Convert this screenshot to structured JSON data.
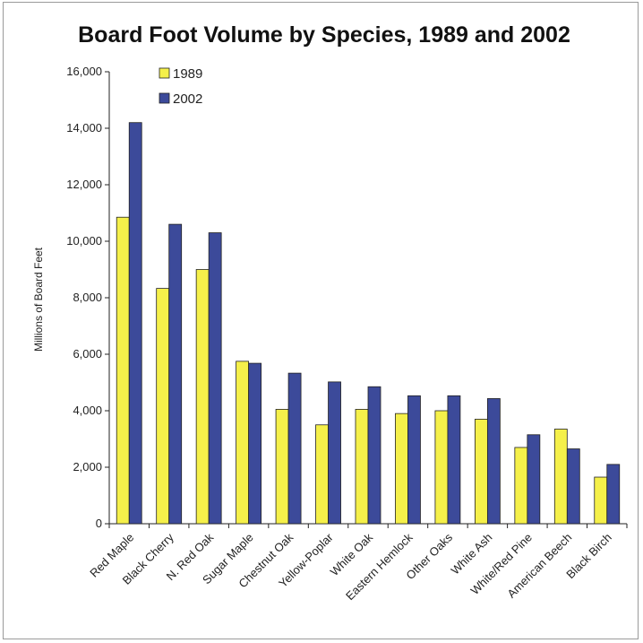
{
  "chart_data": {
    "type": "bar",
    "title": "Board Foot Volume by Species, 1989 and 2002",
    "xlabel": "",
    "ylabel": "Millions of Board Feet",
    "ylim": [
      0,
      16000
    ],
    "yticks": [
      0,
      2000,
      4000,
      6000,
      8000,
      10000,
      12000,
      14000,
      16000
    ],
    "ytick_labels": [
      "0",
      "2,000",
      "4,000",
      "6,000",
      "8,000",
      "10,000",
      "12,000",
      "14,000",
      "16,000"
    ],
    "grid": false,
    "legend_position": "top-left",
    "categories": [
      "Red Maple",
      "Black Cherry",
      "N. Red Oak",
      "Sugar Maple",
      "Chestnut Oak",
      "Yellow-Poplar",
      "White Oak",
      "Eastern Hemlock",
      "Other Oaks",
      "White Ash",
      "White/Red Pine",
      "American Beech",
      "Black Birch"
    ],
    "series": [
      {
        "name": "1989",
        "color": "#f5f04a",
        "values": [
          10850,
          8330,
          9000,
          5750,
          4050,
          3500,
          4050,
          3900,
          4000,
          3700,
          2700,
          3350,
          1650
        ]
      },
      {
        "name": "2002",
        "color": "#3c4a9a",
        "values": [
          14200,
          10600,
          10300,
          5680,
          5330,
          5020,
          4850,
          4530,
          4530,
          4430,
          3150,
          2650,
          2100
        ]
      }
    ]
  }
}
